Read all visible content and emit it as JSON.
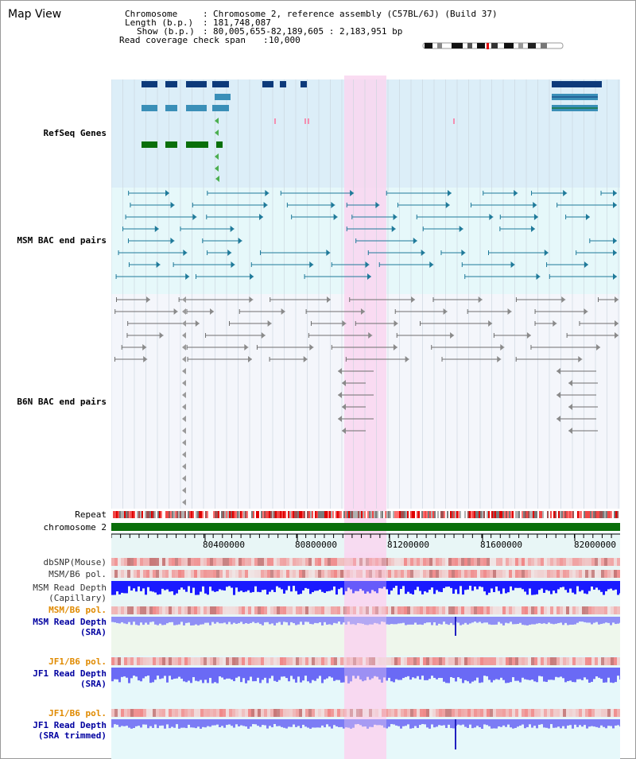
{
  "page": {
    "title": "Map View"
  },
  "info": {
    "chromosome_key": "Chromosome",
    "chromosome_val": "Chromosome 2, reference assembly (C57BL/6J) (Build 37)",
    "length_key": "Length (b.p.)",
    "length_val": "181,748,087",
    "show_key": "Show (b.p.)",
    "show_val": "80,005,655-82,189,605 : 2,183,951 bp",
    "coverage_key": "Read coverage check span",
    "coverage_val": "10,000"
  },
  "colors": {
    "refseq_bg": "#dceef8",
    "msm_bac_bg": "#e6f8fa",
    "b6n_bac_bg": "#f4f6fb",
    "highlight": "#f9d6f0",
    "chromosome_bar": "#0a6f0a",
    "refseq_label": "#00008b",
    "msm_label": "#005f7a",
    "b6n_label": "#555555",
    "pol_label": "#e08a00",
    "depth_label": "#0000a0"
  },
  "tracks": {
    "refseq": "RefSeq Genes",
    "msm_bac": "MSM BAC end pairs",
    "b6n_bac": "B6N BAC end pairs",
    "repeat": "Repeat",
    "chromosome": "chromosome 2",
    "dbsnp": "dbSNP(Mouse)",
    "msm_b6_pol": "MSM/B6 pol.",
    "msm_depth_cap_1": "MSM Read Depth",
    "msm_depth_cap_2": "(Capillary)",
    "msm_b6_pol_2": "MSM/B6 pol.",
    "msm_depth_sra_1": "MSM Read Depth",
    "msm_depth_sra_2": "(SRA)",
    "jf1_b6_pol": "JF1/B6 pol.",
    "jf1_depth_sra_1": "JF1 Read Depth",
    "jf1_depth_sra_2": "(SRA)",
    "jf1_b6_pol_2": "JF1/B6 pol.",
    "jf1_depth_trim_1": "JF1 Read Depth",
    "jf1_depth_trim_2": "(SRA trimmed)"
  },
  "ruler": {
    "ticks": [
      "80400000",
      "80800000",
      "81200000",
      "81600000",
      "82000000"
    ]
  }
}
